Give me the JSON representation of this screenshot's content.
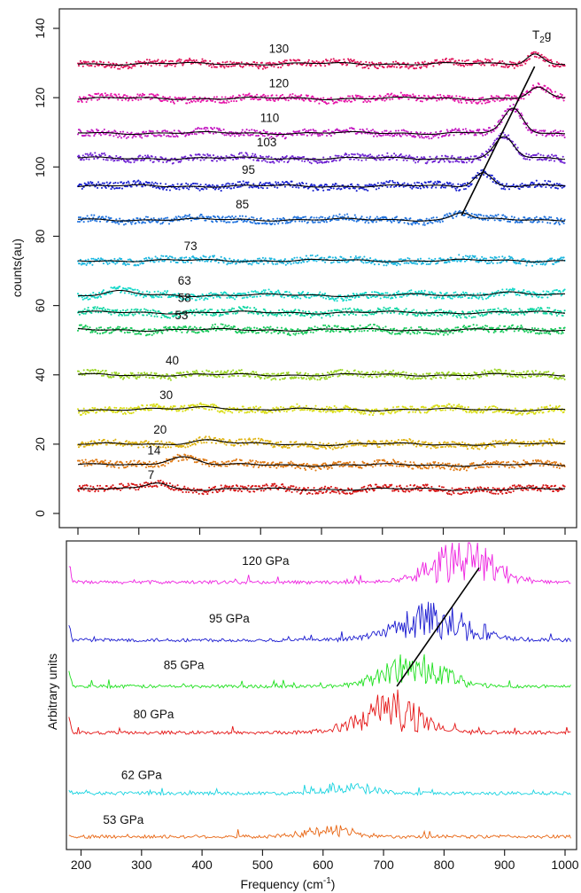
{
  "chart_data": [
    {
      "type": "scatter",
      "ylabel": "counts(au)",
      "xlim": [
        180,
        1010
      ],
      "ylim": [
        -3,
        145
      ],
      "y_ticks": [
        0,
        20,
        40,
        60,
        80,
        100,
        120,
        140
      ],
      "peak_label": {
        "base": "T",
        "sub": "2",
        "tail": "g"
      },
      "peak_trend_line": [
        [
          830,
          86
        ],
        [
          950,
          129
        ]
      ],
      "series": [
        {
          "label": "130",
          "color": "#e0135a",
          "baseline": 129.8,
          "label_x": 530,
          "label_y": 133,
          "bumps": [
            [
              950,
              3,
              18
            ]
          ]
        },
        {
          "label": "120",
          "color": "#e515a8",
          "baseline": 119.8,
          "label_x": 530,
          "label_y": 123,
          "bumps": [
            [
              955,
              3,
              20
            ]
          ]
        },
        {
          "label": "110",
          "color": "#c318c2",
          "baseline": 109.8,
          "label_x": 515,
          "label_y": 113,
          "bumps": [
            [
              915,
              7,
              22
            ]
          ]
        },
        {
          "label": "103",
          "color": "#6e22d2",
          "baseline": 102.5,
          "label_x": 510,
          "label_y": 106,
          "bumps": [
            [
              900,
              6,
              22
            ]
          ]
        },
        {
          "label": "95",
          "color": "#1a22cf",
          "baseline": 94.5,
          "label_x": 480,
          "label_y": 98,
          "bumps": [
            [
              865,
              4,
              20
            ]
          ]
        },
        {
          "label": "85",
          "color": "#1f72de",
          "baseline": 84.8,
          "label_x": 470,
          "label_y": 88,
          "bumps": [
            [
              830,
              2,
              20
            ]
          ]
        },
        {
          "label": "73",
          "color": "#1bb6df",
          "baseline": 73,
          "label_x": 385,
          "label_y": 76,
          "bumps": []
        },
        {
          "label": "63",
          "color": "#13d8c9",
          "baseline": 63,
          "label_x": 375,
          "label_y": 66,
          "bumps": [
            [
              270,
              1,
              30
            ],
            [
              900,
              1,
              35
            ]
          ]
        },
        {
          "label": "58",
          "color": "#12d6a3",
          "baseline": 58,
          "label_x": 375,
          "label_y": 61,
          "bumps": []
        },
        {
          "label": "53",
          "color": "#18ca5b",
          "baseline": 53,
          "label_x": 370,
          "label_y": 56,
          "bumps": []
        },
        {
          "label": "40",
          "color": "#9cd626",
          "baseline": 40,
          "label_x": 355,
          "label_y": 43,
          "bumps": []
        },
        {
          "label": "30",
          "color": "#d9dd16",
          "baseline": 30,
          "label_x": 345,
          "label_y": 33,
          "bumps": [
            [
              420,
              0.8,
              40
            ]
          ]
        },
        {
          "label": "20",
          "color": "#dfb414",
          "baseline": 20,
          "label_x": 335,
          "label_y": 23,
          "bumps": [
            [
              410,
              1.2,
              40
            ]
          ]
        },
        {
          "label": "14",
          "color": "#e07a14",
          "baseline": 14,
          "label_x": 325,
          "label_y": 17,
          "bumps": [
            [
              370,
              2.5,
              35
            ]
          ]
        },
        {
          "label": "7",
          "color": "#d51414",
          "baseline": 7,
          "label_x": 320,
          "label_y": 10,
          "bumps": [
            [
              330,
              2,
              25
            ]
          ]
        }
      ]
    },
    {
      "type": "line",
      "xlabel_base": "Frequency (cm",
      "xlabel_sup": "-1",
      "xlabel_tail": ")",
      "ylabel": "Arbitrary units",
      "xlim": [
        180,
        1010
      ],
      "x_ticks": [
        200,
        300,
        400,
        500,
        600,
        700,
        800,
        900,
        1000
      ],
      "peak_trend_line": [
        [
          722,
          5.4
        ],
        [
          858,
          9.5
        ]
      ],
      "series": [
        {
          "label": "120 GPa",
          "color": "#ee22e0",
          "offset": 9.0,
          "label_x": 505,
          "label_y": 9.6,
          "peak_center": 830,
          "peak_width": 70,
          "peak_amp": 1.6
        },
        {
          "label": "95 GPa",
          "color": "#1a1ad0",
          "offset": 7.0,
          "label_x": 445,
          "label_y": 7.6,
          "peak_center": 780,
          "peak_width": 80,
          "peak_amp": 1.3
        },
        {
          "label": "85 GPa",
          "color": "#1ee01e",
          "offset": 5.4,
          "label_x": 370,
          "label_y": 6.0,
          "peak_center": 750,
          "peak_width": 70,
          "peak_amp": 1.2
        },
        {
          "label": "80 GPa",
          "color": "#e41414",
          "offset": 3.8,
          "label_x": 320,
          "label_y": 4.3,
          "peak_center": 710,
          "peak_width": 70,
          "peak_amp": 1.4
        },
        {
          "label": "62 GPa",
          "color": "#19d3e0",
          "offset": 1.7,
          "label_x": 300,
          "label_y": 2.2,
          "peak_center": 640,
          "peak_width": 55,
          "peak_amp": 0.35
        },
        {
          "label": "53 GPa",
          "color": "#e86410",
          "offset": 0.2,
          "label_x": 270,
          "label_y": 0.65,
          "peak_center": 610,
          "peak_width": 55,
          "peak_amp": 0.4
        }
      ]
    }
  ]
}
